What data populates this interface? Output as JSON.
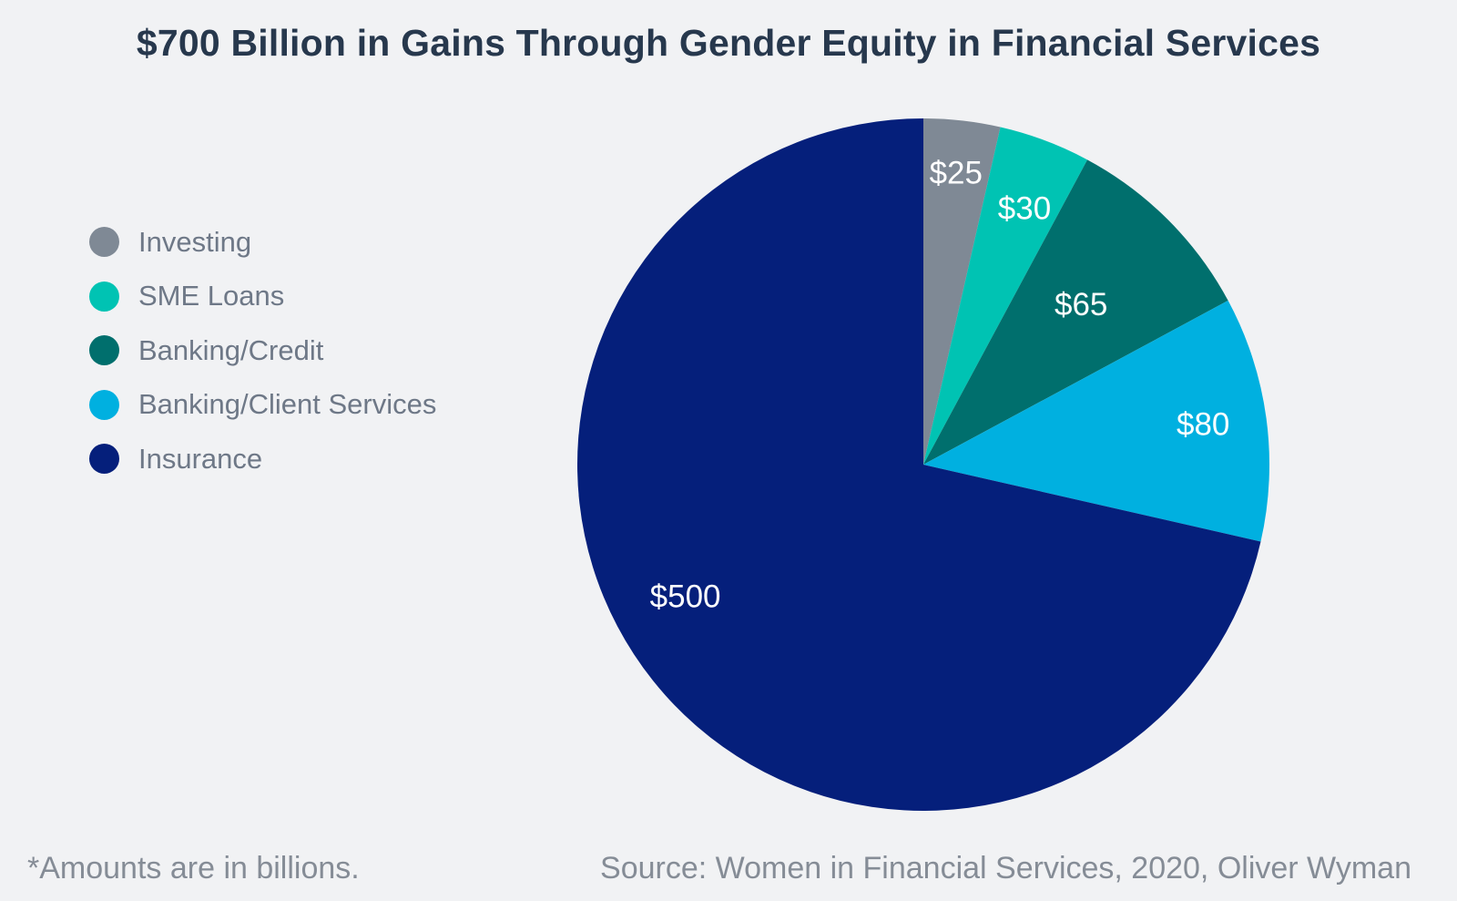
{
  "chart_data": {
    "type": "pie",
    "title": "$700 Billion in Gains Through Gender Equity in Financial Services",
    "legend_position": "left",
    "start_angle_deg": 0,
    "direction": "clockwise",
    "slices": [
      {
        "name": "Investing",
        "value": 25,
        "label": "$25",
        "color": "#7f8995"
      },
      {
        "name": "SME Loans",
        "value": 30,
        "label": "$30",
        "color": "#00c3b3"
      },
      {
        "name": "Banking/Credit",
        "value": 65,
        "label": "$65",
        "color": "#006f6d"
      },
      {
        "name": "Banking/Client Services",
        "value": 80,
        "label": "$80",
        "color": "#00b0e0"
      },
      {
        "name": "Insurance",
        "value": 500,
        "label": "$500",
        "color": "#051f7b"
      }
    ]
  },
  "footnote": "*Amounts are in billions.",
  "source": "Source: Women in Financial Services, 2020, Oliver Wyman",
  "colors": {
    "background": "#f1f2f4",
    "title": "#27384d",
    "legend_text": "#6e7887",
    "footer_text": "#858c96"
  }
}
